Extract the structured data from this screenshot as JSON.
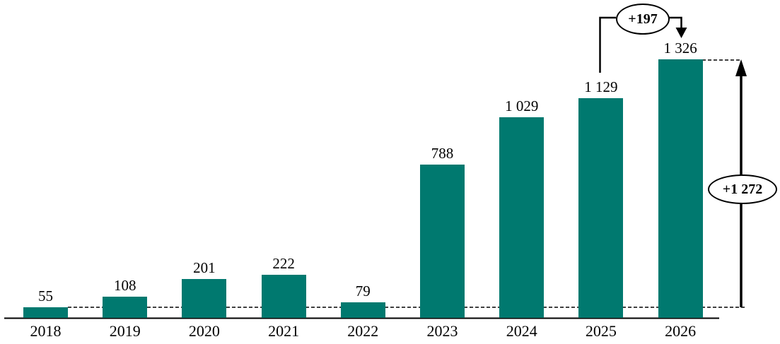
{
  "chart_data": {
    "type": "bar",
    "title": "",
    "xlabel": "",
    "ylabel": "",
    "categories": [
      "2018",
      "2019",
      "2020",
      "2021",
      "2022",
      "2023",
      "2024",
      "2025",
      "2026"
    ],
    "values": [
      55,
      108,
      201,
      222,
      79,
      788,
      1029,
      1129,
      1326
    ],
    "display_values": [
      "55",
      "108",
      "201",
      "222",
      "79",
      "788",
      "1 029",
      "1 129",
      "1 326"
    ],
    "ylim": [
      0,
      1450
    ],
    "grid": false,
    "legend": false,
    "bar_color": "#00796F",
    "background_color": "#ffffff",
    "baseline_dashed_reference_value": 55,
    "annotations": [
      {
        "label": "+197",
        "type": "bracket-arrow",
        "from_category": "2025",
        "to_category": "2026"
      },
      {
        "label": "+1 272",
        "type": "total-span-arrow",
        "from_value": 55,
        "to_value": 1326
      }
    ]
  }
}
